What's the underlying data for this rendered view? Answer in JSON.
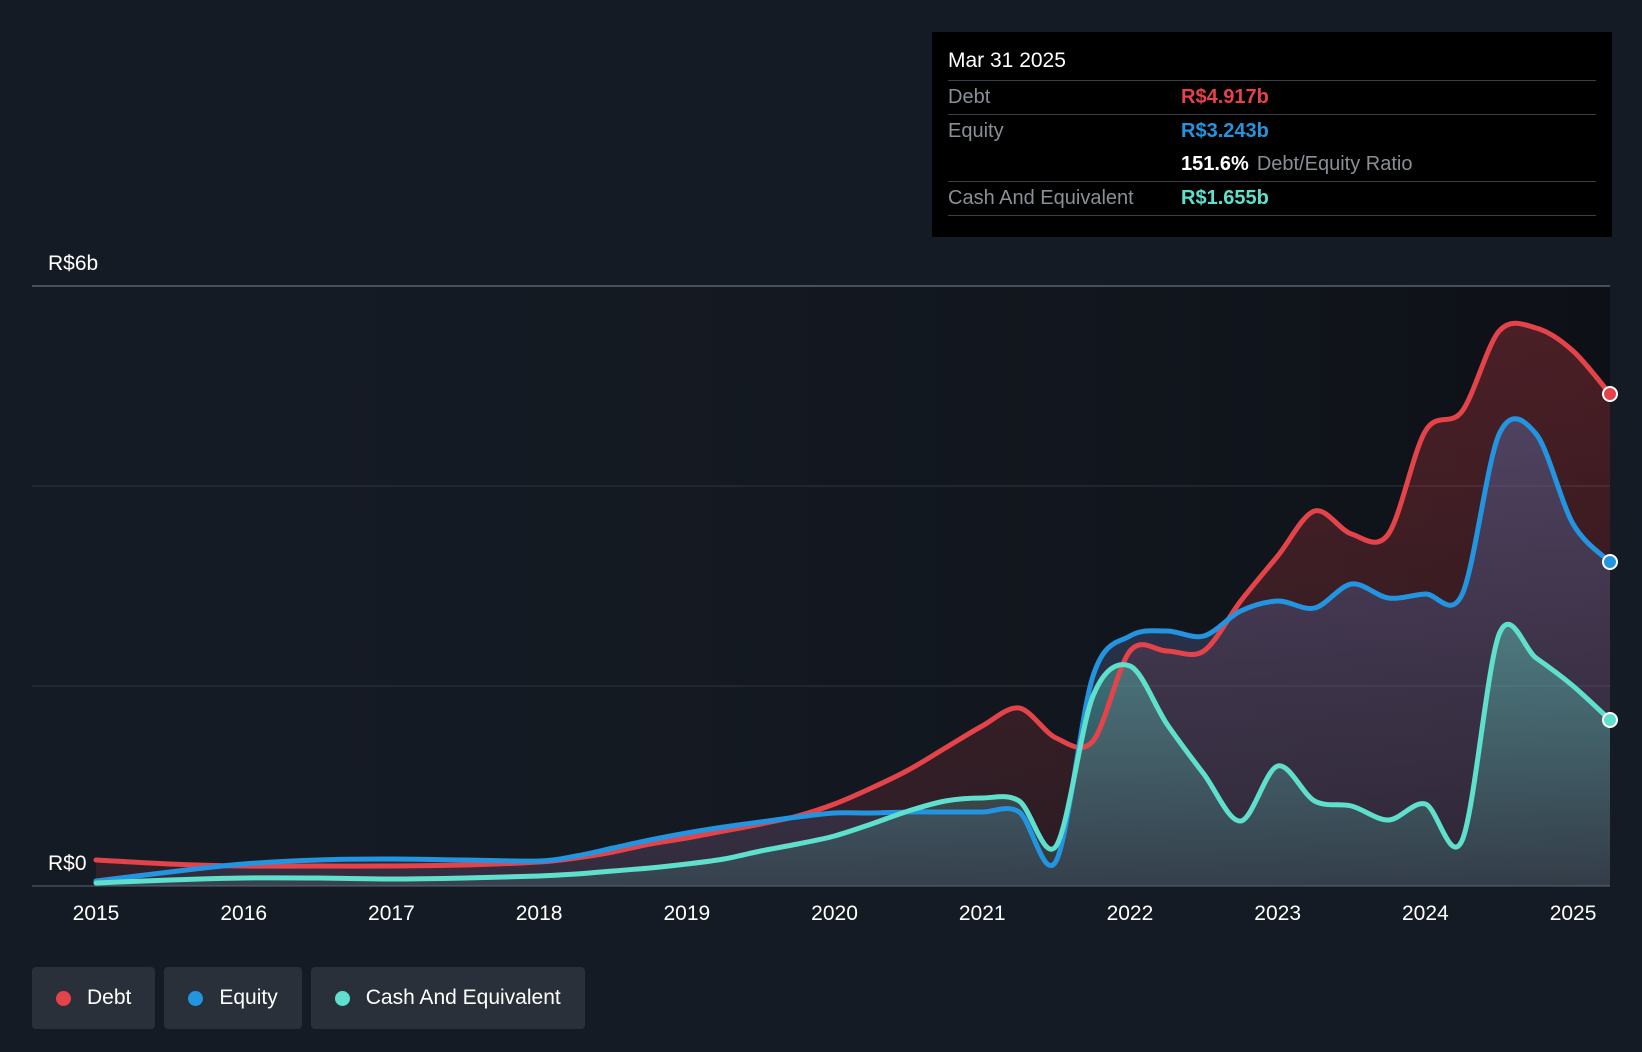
{
  "chart_data": {
    "type": "area",
    "currency_prefix": "R$",
    "y_axis": {
      "top_label": "R$6b",
      "bottom_label": "R$0",
      "ylim": [
        0,
        6
      ]
    },
    "x_ticks": [
      "2015",
      "2016",
      "2017",
      "2018",
      "2019",
      "2020",
      "2021",
      "2022",
      "2023",
      "2024",
      "2025"
    ],
    "x_range": [
      2015,
      2025.25
    ],
    "series": [
      {
        "name": "Debt",
        "color": "#e5434a",
        "points": [
          [
            2015,
            0.26
          ],
          [
            2015.5,
            0.22
          ],
          [
            2016,
            0.2
          ],
          [
            2016.5,
            0.2
          ],
          [
            2017,
            0.2
          ],
          [
            2017.5,
            0.21
          ],
          [
            2018,
            0.24
          ],
          [
            2018.25,
            0.28
          ],
          [
            2018.5,
            0.34
          ],
          [
            2018.75,
            0.42
          ],
          [
            2019,
            0.48
          ],
          [
            2019.25,
            0.55
          ],
          [
            2019.5,
            0.62
          ],
          [
            2019.75,
            0.7
          ],
          [
            2020,
            0.82
          ],
          [
            2020.25,
            0.98
          ],
          [
            2020.5,
            1.16
          ],
          [
            2020.75,
            1.38
          ],
          [
            2021,
            1.6
          ],
          [
            2021.25,
            1.78
          ],
          [
            2021.5,
            1.48
          ],
          [
            2021.75,
            1.45
          ],
          [
            2022,
            2.35
          ],
          [
            2022.25,
            2.35
          ],
          [
            2022.5,
            2.35
          ],
          [
            2022.75,
            2.85
          ],
          [
            2023,
            3.3
          ],
          [
            2023.25,
            3.75
          ],
          [
            2023.5,
            3.52
          ],
          [
            2023.75,
            3.52
          ],
          [
            2024,
            4.55
          ],
          [
            2024.25,
            4.75
          ],
          [
            2024.5,
            5.55
          ],
          [
            2024.75,
            5.58
          ],
          [
            2025,
            5.35
          ],
          [
            2025.25,
            4.92
          ]
        ]
      },
      {
        "name": "Equity",
        "color": "#2394df",
        "points": [
          [
            2015,
            0.05
          ],
          [
            2015.5,
            0.14
          ],
          [
            2016,
            0.22
          ],
          [
            2016.5,
            0.26
          ],
          [
            2017,
            0.27
          ],
          [
            2017.5,
            0.26
          ],
          [
            2018,
            0.25
          ],
          [
            2018.25,
            0.3
          ],
          [
            2018.5,
            0.38
          ],
          [
            2018.75,
            0.46
          ],
          [
            2019,
            0.53
          ],
          [
            2019.25,
            0.59
          ],
          [
            2019.5,
            0.64
          ],
          [
            2019.75,
            0.69
          ],
          [
            2020,
            0.73
          ],
          [
            2020.25,
            0.73
          ],
          [
            2020.5,
            0.74
          ],
          [
            2020.75,
            0.74
          ],
          [
            2021,
            0.74
          ],
          [
            2021.25,
            0.74
          ],
          [
            2021.5,
            0.25
          ],
          [
            2021.75,
            2.1
          ],
          [
            2022,
            2.5
          ],
          [
            2022.25,
            2.55
          ],
          [
            2022.5,
            2.5
          ],
          [
            2022.75,
            2.75
          ],
          [
            2023,
            2.85
          ],
          [
            2023.25,
            2.78
          ],
          [
            2023.5,
            3.02
          ],
          [
            2023.75,
            2.88
          ],
          [
            2024,
            2.92
          ],
          [
            2024.25,
            2.92
          ],
          [
            2024.5,
            4.52
          ],
          [
            2024.75,
            4.52
          ],
          [
            2025,
            3.62
          ],
          [
            2025.25,
            3.24
          ]
        ]
      },
      {
        "name": "Cash And Equivalent",
        "color": "#5fe0cc",
        "points": [
          [
            2015,
            0.03
          ],
          [
            2015.5,
            0.06
          ],
          [
            2016,
            0.08
          ],
          [
            2016.5,
            0.08
          ],
          [
            2017,
            0.07
          ],
          [
            2017.5,
            0.08
          ],
          [
            2018,
            0.1
          ],
          [
            2018.25,
            0.12
          ],
          [
            2018.5,
            0.15
          ],
          [
            2018.75,
            0.18
          ],
          [
            2019,
            0.22
          ],
          [
            2019.25,
            0.27
          ],
          [
            2019.5,
            0.35
          ],
          [
            2019.75,
            0.42
          ],
          [
            2020,
            0.5
          ],
          [
            2020.25,
            0.62
          ],
          [
            2020.5,
            0.75
          ],
          [
            2020.75,
            0.85
          ],
          [
            2021,
            0.88
          ],
          [
            2021.25,
            0.85
          ],
          [
            2021.5,
            0.4
          ],
          [
            2021.75,
            1.9
          ],
          [
            2022,
            2.2
          ],
          [
            2022.25,
            1.62
          ],
          [
            2022.5,
            1.12
          ],
          [
            2022.75,
            0.65
          ],
          [
            2023,
            1.2
          ],
          [
            2023.25,
            0.85
          ],
          [
            2023.5,
            0.8
          ],
          [
            2023.75,
            0.66
          ],
          [
            2024,
            0.82
          ],
          [
            2024.25,
            0.46
          ],
          [
            2024.5,
            2.52
          ],
          [
            2024.75,
            2.28
          ],
          [
            2025,
            2.0
          ],
          [
            2025.25,
            1.66
          ]
        ]
      }
    ]
  },
  "tooltip": {
    "date": "Mar 31 2025",
    "debt_label": "Debt",
    "debt_value": "R$4.917b",
    "equity_label": "Equity",
    "equity_value": "R$3.243b",
    "ratio_value": "151.6%",
    "ratio_label": "Debt/Equity Ratio",
    "cash_label": "Cash And Equivalent",
    "cash_value": "R$1.655b"
  },
  "legend": [
    {
      "label": "Debt",
      "color": "#e5434a"
    },
    {
      "label": "Equity",
      "color": "#2394df"
    },
    {
      "label": "Cash And Equivalent",
      "color": "#5fe0cc"
    }
  ]
}
